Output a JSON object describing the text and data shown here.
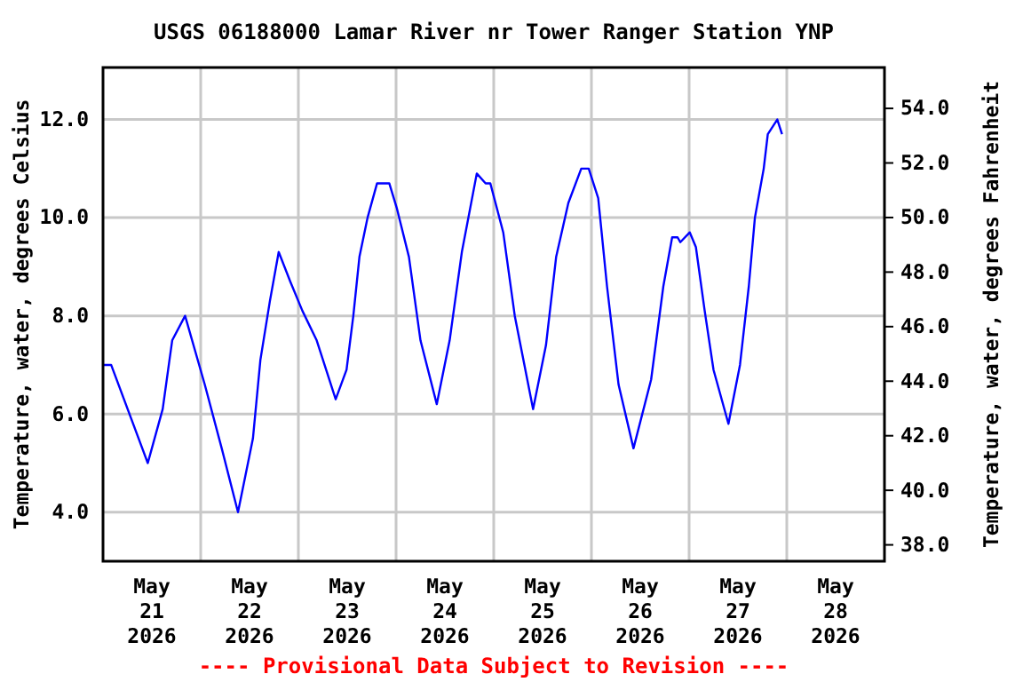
{
  "chart_data": {
    "type": "line",
    "title": "USGS 06188000 Lamar River nr Tower Ranger Station YNP",
    "ylabel": "Temperature, water, degrees Celsius",
    "y2label": "Temperature, water, degrees Fahrenheit",
    "annotations": [
      "---- Provisional Data Subject to Revision ----"
    ],
    "xlim": [
      "2026-05-21",
      "2026-05-29"
    ],
    "xticks": [
      {
        "value": "2026-05-21T12:00",
        "label": "May\n21\n2026"
      },
      {
        "value": "2026-05-22T12:00",
        "label": "May\n22\n2026"
      },
      {
        "value": "2026-05-23T12:00",
        "label": "May\n23\n2026"
      },
      {
        "value": "2026-05-24T12:00",
        "label": "May\n24\n2026"
      },
      {
        "value": "2026-05-25T12:00",
        "label": "May\n25\n2026"
      },
      {
        "value": "2026-05-26T12:00",
        "label": "May\n26\n2026"
      },
      {
        "value": "2026-05-27T12:00",
        "label": "May\n27\n2026"
      },
      {
        "value": "2026-05-28T12:00",
        "label": "May\n28\n2026"
      },
      {
        "value": "2026-05-22",
        "label": null
      },
      {
        "value": "2026-05-23",
        "label": null
      },
      {
        "value": "2026-05-24",
        "label": null
      },
      {
        "value": "2026-05-25",
        "label": null
      },
      {
        "value": "2026-05-26",
        "label": null
      },
      {
        "value": "2026-05-27",
        "label": null
      },
      {
        "value": "2026-05-28",
        "label": null
      }
    ],
    "ylim": [
      3.0,
      13.06
    ],
    "yticks": [
      {
        "value": 4,
        "label": "4.0"
      },
      {
        "value": 6,
        "label": "6.0"
      },
      {
        "value": 8,
        "label": "8.0"
      },
      {
        "value": 10,
        "label": "10.0"
      },
      {
        "value": 12,
        "label": "12.0"
      }
    ],
    "y2lim": [
      37.4,
      55.5
    ],
    "y2ticks": [
      {
        "value": 38,
        "label": "38.0"
      },
      {
        "value": 40,
        "label": "40.0"
      },
      {
        "value": 42,
        "label": "42.0"
      },
      {
        "value": 44,
        "label": "44.0"
      },
      {
        "value": 46,
        "label": "46.0"
      },
      {
        "value": 48,
        "label": "48.0"
      },
      {
        "value": 50,
        "label": "50.0"
      },
      {
        "value": 52,
        "label": "52.0"
      },
      {
        "value": 54,
        "label": "54.0"
      }
    ],
    "grid": true,
    "marker": "none",
    "line_style": "solid",
    "series": [
      {
        "color": "#0000ff",
        "x": [
          "2026-05-21T00:00",
          "2026-05-21T02:00",
          "2026-05-21T11:00",
          "2026-05-21T14:40",
          "2026-05-21T16:00",
          "2026-05-21T17:00",
          "2026-05-21T20:10",
          "2026-05-22T01:00",
          "2026-05-22T05:10",
          "2026-05-22T09:10",
          "2026-05-22T12:50",
          "2026-05-22T14:40",
          "2026-05-22T17:00",
          "2026-05-22T19:10",
          "2026-05-22T22:00",
          "2026-05-23T01:00",
          "2026-05-23T04:30",
          "2026-05-23T09:10",
          "2026-05-23T11:50",
          "2026-05-23T13:30",
          "2026-05-23T15:00",
          "2026-05-23T17:00",
          "2026-05-23T19:20",
          "2026-05-23T22:20",
          "2026-05-24T00:10",
          "2026-05-24T03:10",
          "2026-05-24T06:00",
          "2026-05-24T10:00",
          "2026-05-24T13:10",
          "2026-05-24T16:10",
          "2026-05-24T19:50",
          "2026-05-24T22:00",
          "2026-05-24T23:10",
          "2026-05-25T02:20",
          "2026-05-25T05:10",
          "2026-05-25T09:40",
          "2026-05-25T12:50",
          "2026-05-25T15:20",
          "2026-05-25T18:20",
          "2026-05-25T21:30",
          "2026-05-25T23:20",
          "2026-05-26T01:40",
          "2026-05-26T03:50",
          "2026-05-26T06:40",
          "2026-05-26T10:20",
          "2026-05-26T14:40",
          "2026-05-26T17:40",
          "2026-05-26T19:50",
          "2026-05-26T21:10",
          "2026-05-26T21:50",
          "2026-05-27T00:10",
          "2026-05-27T01:40",
          "2026-05-27T03:50",
          "2026-05-27T06:00",
          "2026-05-27T09:40",
          "2026-05-27T12:30",
          "2026-05-27T14:40",
          "2026-05-27T16:10",
          "2026-05-27T18:20",
          "2026-05-27T19:20",
          "2026-05-27T21:40",
          "2026-05-27T22:50"
        ],
        "values": [
          7.0,
          7.0,
          5.0,
          6.1,
          6.9,
          7.5,
          8.0,
          6.6,
          5.3,
          4.0,
          5.5,
          7.1,
          8.3,
          9.3,
          8.7,
          8.1,
          7.5,
          6.3,
          6.9,
          8.0,
          9.2,
          10.0,
          10.7,
          10.7,
          10.2,
          9.2,
          7.5,
          6.2,
          7.5,
          9.3,
          10.9,
          10.7,
          10.7,
          9.7,
          8.0,
          6.1,
          7.4,
          9.2,
          10.3,
          11.0,
          11.0,
          10.4,
          8.6,
          6.6,
          5.3,
          6.7,
          8.6,
          9.6,
          9.6,
          9.5,
          9.7,
          9.4,
          8.1,
          6.9,
          5.8,
          7.0,
          8.6,
          10.0,
          11.0,
          11.7,
          12.0,
          11.7
        ]
      }
    ]
  }
}
